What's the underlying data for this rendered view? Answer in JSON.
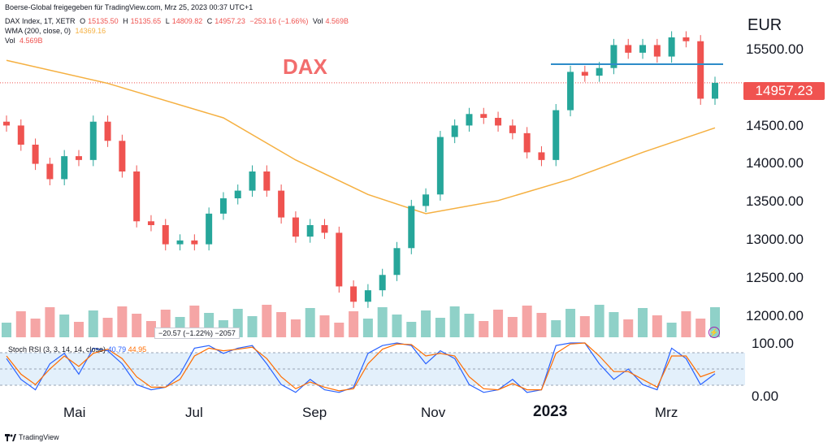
{
  "header": {
    "publish_line": "Boerse-Global freigegeben für TradingView.com, Mrz 25, 2023 00:37 UTC+1",
    "symbol": "DAX Index, 1T, XETR",
    "open_label": "O",
    "open": "15135.50",
    "high_label": "H",
    "high": "15135.65",
    "low_label": "L",
    "low": "14809.82",
    "close_label": "C",
    "close": "14957.23",
    "change": "−253.16 (−1.66%)",
    "vol_label": "Vol",
    "vol": "4.569B",
    "wma_label": "WMA (200, close, 0)",
    "wma_value": "14369.16",
    "vol2_label": "Vol",
    "vol2_value": "4.569B"
  },
  "chart_title": "DAX",
  "currency": "EUR",
  "last_price_tag": "14957.23",
  "tooltip": "−20.57 (−1.22%) −2057",
  "stoch": {
    "label": "Stoch RSI (3, 3, 14, 14, close)",
    "k": "40.79",
    "d": "44.95"
  },
  "brand": "TradingView",
  "colors": {
    "up": "#26a69a",
    "down": "#ef5350",
    "wma": "#f5b041",
    "stoch_k": "#2962ff",
    "stoch_d": "#ff6d00",
    "resistance": "#2d8cc9",
    "vol_up": "#8fd1c8",
    "vol_down": "#f5a5a5"
  },
  "chart_data": [
    {
      "type": "candlestick",
      "title": "DAX",
      "ylabel": "EUR",
      "ylim": [
        11700,
        15900
      ],
      "yticks": [
        "15500.00",
        "15000.00",
        "14500.00",
        "14000.00",
        "13500.00",
        "13000.00",
        "12500.00",
        "12000.00"
      ],
      "x_labels": [
        "Mai",
        "Jul",
        "Sep",
        "Nov",
        "2023",
        "Mrz"
      ],
      "series": [
        {
          "name": "DAX Index",
          "x": [
            "2022-04-15",
            "2022-04-22",
            "2022-04-29",
            "2022-05-06",
            "2022-05-13",
            "2022-05-20",
            "2022-05-27",
            "2022-06-03",
            "2022-06-10",
            "2022-06-17",
            "2022-06-24",
            "2022-07-01",
            "2022-07-08",
            "2022-07-15",
            "2022-07-22",
            "2022-07-29",
            "2022-08-05",
            "2022-08-12",
            "2022-08-19",
            "2022-08-26",
            "2022-09-02",
            "2022-09-09",
            "2022-09-16",
            "2022-09-23",
            "2022-09-30",
            "2022-10-07",
            "2022-10-14",
            "2022-10-21",
            "2022-10-28",
            "2022-11-04",
            "2022-11-11",
            "2022-11-18",
            "2022-11-25",
            "2022-12-02",
            "2022-12-09",
            "2022-12-16",
            "2022-12-23",
            "2022-12-30",
            "2023-01-06",
            "2023-01-13",
            "2023-01-20",
            "2023-01-27",
            "2023-02-03",
            "2023-02-10",
            "2023-02-17",
            "2023-02-24",
            "2023-03-03",
            "2023-03-10",
            "2023-03-17",
            "2023-03-24"
          ],
          "close": [
            14400,
            14150,
            13900,
            13700,
            14000,
            13950,
            14450,
            14200,
            13800,
            13150,
            13100,
            12850,
            12900,
            12850,
            13250,
            13450,
            13550,
            13800,
            13550,
            13200,
            12950,
            13100,
            13000,
            12300,
            12100,
            12250,
            12450,
            12800,
            13350,
            13500,
            14250,
            14400,
            14550,
            14500,
            14400,
            14300,
            14050,
            13950,
            14600,
            15100,
            15050,
            15150,
            15450,
            15350,
            15450,
            15300,
            15550,
            15500,
            14750,
            14957
          ]
        },
        {
          "name": "WMA (200, close, 0)",
          "x": [
            "2022-04-15",
            "2022-06-03",
            "2022-07-29",
            "2022-09-02",
            "2022-10-07",
            "2022-11-04",
            "2022-12-09",
            "2023-01-13",
            "2023-02-17",
            "2023-03-24"
          ],
          "values": [
            15250,
            14950,
            14500,
            13950,
            13500,
            13250,
            13420,
            13700,
            14050,
            14369.16
          ]
        },
        {
          "name": "Resistance",
          "values": [
            15200
          ]
        }
      ]
    },
    {
      "type": "line",
      "title": "Stoch RSI (3, 3, 14, 14, close)",
      "ylim": [
        0,
        100
      ],
      "yticks": [
        "100.00",
        "0.00"
      ],
      "series": [
        {
          "name": "K",
          "values": [
            70,
            30,
            10,
            60,
            80,
            40,
            90,
            85,
            60,
            20,
            10,
            15,
            40,
            90,
            95,
            80,
            90,
            95,
            60,
            20,
            5,
            30,
            10,
            5,
            15,
            80,
            95,
            100,
            95,
            60,
            85,
            70,
            20,
            5,
            10,
            30,
            5,
            10,
            95,
            100,
            100,
            60,
            30,
            50,
            20,
            10,
            90,
            70,
            20,
            40.79
          ]
        },
        {
          "name": "D",
          "values": [
            75,
            40,
            20,
            50,
            75,
            55,
            80,
            88,
            70,
            35,
            15,
            15,
            30,
            75,
            90,
            85,
            88,
            92,
            70,
            35,
            12,
            25,
            15,
            8,
            12,
            60,
            88,
            98,
            97,
            75,
            80,
            75,
            35,
            12,
            10,
            22,
            10,
            10,
            80,
            98,
            100,
            75,
            45,
            45,
            30,
            15,
            75,
            75,
            35,
            44.95
          ]
        }
      ]
    }
  ]
}
